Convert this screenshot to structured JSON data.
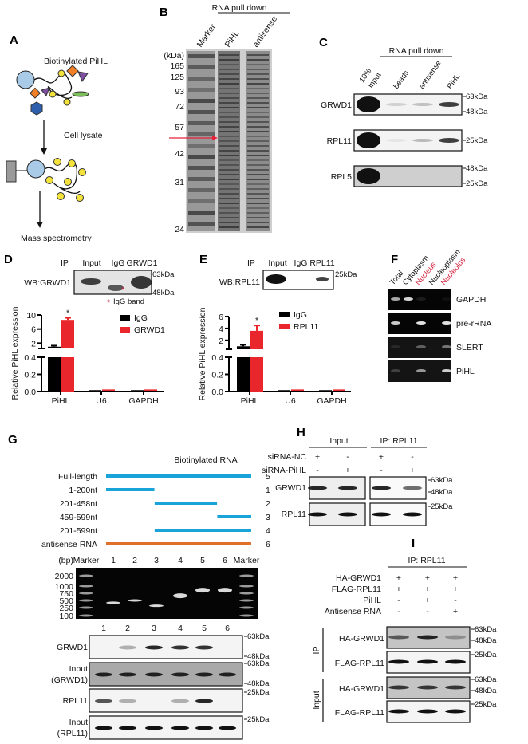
{
  "panel_labels": {
    "A": "A",
    "B": "B",
    "C": "C",
    "D": "D",
    "E": "E",
    "F": "F",
    "G": "G",
    "H": "H",
    "I": "I"
  },
  "A": {
    "title": "Biotinylated PiHL",
    "step1": "Cell lysate",
    "step2": "Mass spectrometry"
  },
  "B": {
    "header": "RNA pull down",
    "lanes": [
      "Marker",
      "PiHL",
      "antisense"
    ],
    "unit": "(kDa)",
    "markers": [
      "165",
      "125",
      "93",
      "72",
      "57",
      "42",
      "31",
      "24"
    ],
    "arrow_color": "#e8203a"
  },
  "C": {
    "header": "RNA pull down",
    "lanes": [
      "10%",
      "Input",
      "beads",
      "antisense",
      "PiHL"
    ],
    "rows": [
      {
        "label": "GRWD1",
        "kda": [
          "63kDa",
          "48kDa"
        ],
        "intensity": [
          1,
          0.15,
          0.22,
          0.8
        ]
      },
      {
        "label": "RPL11",
        "kda": [
          "25kDa"
        ],
        "intensity": [
          1,
          0.06,
          0.25,
          0.8
        ]
      },
      {
        "label": "RPL5",
        "kda": [
          "48kDa",
          "25kDa"
        ],
        "intensity": [
          1,
          0,
          0,
          0
        ]
      }
    ]
  },
  "D": {
    "ip": "IP",
    "lanes": [
      "Input",
      "IgG",
      "GRWD1"
    ],
    "wb": "WB:GRWD1",
    "kda": [
      "63kDa",
      "48kDa"
    ],
    "asterisk": "*",
    "note": "IgG band",
    "sig": "*"
  },
  "E": {
    "ip": "IP",
    "lanes": [
      "Input",
      "IgG",
      "RPL11"
    ],
    "wb": "WB:RPL11",
    "kda": [
      "25kDa"
    ],
    "sig": "*"
  },
  "chart_data": [
    {
      "type": "bar",
      "ylabel": "Relative PiHL expression",
      "categories": [
        "PiHL",
        "U6",
        "GAPDH"
      ],
      "broken_axis": true,
      "ylim_lower": [
        0,
        0.4
      ],
      "ylim_upper": [
        0.5,
        10
      ],
      "yticks_lower": [
        "0.0",
        "0.2",
        "0.4"
      ],
      "yticks_upper": [
        "2",
        "6",
        "10"
      ],
      "legend_position": "top-right",
      "series": [
        {
          "name": "IgG",
          "color": "#000000",
          "values": [
            1.0,
            0.005,
            0.005
          ],
          "errors": [
            0.3,
            0.002,
            0.002
          ]
        },
        {
          "name": "GRWD1",
          "color": "#e8262b",
          "values": [
            8.6,
            0.012,
            0.012
          ],
          "errors": [
            0.6,
            0.003,
            0.003
          ]
        }
      ]
    },
    {
      "type": "bar",
      "ylabel": "Relative PiHL expression",
      "categories": [
        "PiHL",
        "U6",
        "GAPDH"
      ],
      "broken_axis": true,
      "ylim_lower": [
        0,
        0.4
      ],
      "ylim_upper": [
        0.5,
        6
      ],
      "yticks_lower": [
        "0.0",
        "0.2",
        "0.4"
      ],
      "yticks_upper": [
        "2",
        "4",
        "6"
      ],
      "legend_position": "top-right",
      "series": [
        {
          "name": "IgG",
          "color": "#000000",
          "values": [
            1.0,
            0.005,
            0.005
          ],
          "errors": [
            0.25,
            0.002,
            0.002
          ]
        },
        {
          "name": "RPL11",
          "color": "#e8262b",
          "values": [
            3.6,
            0.012,
            0.012
          ],
          "errors": [
            0.9,
            0.003,
            0.003
          ]
        }
      ]
    }
  ],
  "F": {
    "lanes": [
      {
        "label": "Total",
        "color": "#111111"
      },
      {
        "label": "Cytoplasm",
        "color": "#111111"
      },
      {
        "label": "Nucleus",
        "color": "#d0213b"
      },
      {
        "label": "Nucleoplasm",
        "color": "#111111"
      },
      {
        "label": "Nucleolus",
        "color": "#d0213b"
      }
    ],
    "rows": [
      {
        "label": "GAPDH",
        "intensity": [
          0.7,
          0.9,
          0.1,
          0,
          0.05
        ]
      },
      {
        "label": "pre-rRNA",
        "intensity": [
          0.85,
          0,
          0.95,
          0,
          0.95
        ]
      },
      {
        "label": "SLERT",
        "intensity": [
          0.1,
          0,
          0.35,
          0,
          0.45
        ]
      },
      {
        "label": "PiHL",
        "intensity": [
          0.2,
          0,
          0.6,
          0,
          0.85
        ]
      }
    ]
  },
  "G": {
    "header": "Biotinylated RNA",
    "constructs": [
      {
        "label": "Full-length",
        "start": 1,
        "end": 599,
        "lane": "5",
        "color": "#1aa3d9"
      },
      {
        "label": "1-200nt",
        "start": 1,
        "end": 200,
        "lane": "1",
        "color": "#1aa3d9"
      },
      {
        "label": "201-458nt",
        "start": 201,
        "end": 458,
        "lane": "2",
        "color": "#1aa3d9"
      },
      {
        "label": "459-599nt",
        "start": 459,
        "end": 599,
        "lane": "3",
        "color": "#1aa3d9"
      },
      {
        "label": "201-599nt",
        "start": 201,
        "end": 599,
        "lane": "4",
        "color": "#1aa3d9"
      },
      {
        "label": "antisense RNA",
        "start": 1,
        "end": 599,
        "lane": "6",
        "color": "#e0702a"
      }
    ],
    "gel": {
      "unit": "(bp)",
      "lanes": [
        "Marker",
        "1",
        "2",
        "3",
        "4",
        "5",
        "6",
        "Marker"
      ],
      "ladder": [
        "2000",
        "1000",
        "750",
        "500",
        "250",
        "100"
      ],
      "band_bp": [
        400,
        500,
        300,
        650,
        850,
        850
      ]
    },
    "blot_lanes": [
      "1",
      "2",
      "3",
      "4",
      "5",
      "6"
    ],
    "blots": [
      {
        "label": [
          "GRWD1"
        ],
        "kda": [
          "63kDa",
          "48kDa"
        ],
        "intensity": [
          0,
          0.3,
          0.9,
          0.85,
          0.85,
          0
        ],
        "gray": false
      },
      {
        "label": [
          "Input",
          "(GRWD1)"
        ],
        "kda": [
          "63kDa",
          "48kDa"
        ],
        "intensity": [
          0.9,
          0.9,
          0.9,
          0.9,
          0.9,
          0.9
        ],
        "gray": true
      },
      {
        "label": [
          "RPL11"
        ],
        "kda": [
          "25kDa"
        ],
        "intensity": [
          0.7,
          0.3,
          0,
          0.3,
          0.9,
          0
        ],
        "gray": false
      },
      {
        "label": [
          "Input",
          "(RPL11)"
        ],
        "kda": [
          "25kDa"
        ],
        "intensity": [
          1,
          1,
          1,
          1,
          1,
          1
        ],
        "gray": false
      }
    ]
  },
  "H": {
    "group_input": "Input",
    "group_ip": "IP: RPL11",
    "conditions": [
      {
        "label": "siRNA-NC",
        "values": [
          "+",
          "-",
          "+",
          "-"
        ]
      },
      {
        "label": "siRNA-PiHL",
        "values": [
          "-",
          "+",
          "-",
          "+"
        ]
      }
    ],
    "blots": [
      {
        "label": "GRWD1",
        "kda": [
          "63kDa",
          "48kDa"
        ],
        "intensity": [
          0.9,
          0.9,
          0.9,
          0.6
        ]
      },
      {
        "label": "RPL11",
        "kda": [
          "25kDa"
        ],
        "intensity": [
          1,
          1,
          1,
          1
        ]
      }
    ]
  },
  "I": {
    "header": "IP: RPL11",
    "conditions": [
      {
        "label": "HA-GRWD1",
        "values": [
          "+",
          "+",
          "+"
        ]
      },
      {
        "label": "FLAG-RPL11",
        "values": [
          "+",
          "+",
          "+"
        ]
      },
      {
        "label": "PiHL",
        "values": [
          "-",
          "+",
          "-"
        ]
      },
      {
        "label": "Antisense RNA",
        "values": [
          "-",
          "-",
          "+"
        ]
      }
    ],
    "groups": [
      "IP",
      "Input"
    ],
    "blots": [
      {
        "label": "HA-GRWD1",
        "kda": [
          "63kDa",
          "48kDa"
        ],
        "intensity": [
          0.6,
          0.9,
          0.3
        ],
        "gray": true
      },
      {
        "label": "FLAG-RPL11",
        "kda": [
          "25kDa"
        ],
        "intensity": [
          1,
          1,
          1
        ],
        "gray": false
      },
      {
        "label": "HA-GRWD1",
        "kda": [
          "63kDa",
          "48kDa"
        ],
        "intensity": [
          0.8,
          0.8,
          0.8
        ],
        "gray": true
      },
      {
        "label": "FLAG-RPL11",
        "kda": [
          "25kDa"
        ],
        "intensity": [
          1,
          1,
          1
        ],
        "gray": false
      }
    ]
  }
}
